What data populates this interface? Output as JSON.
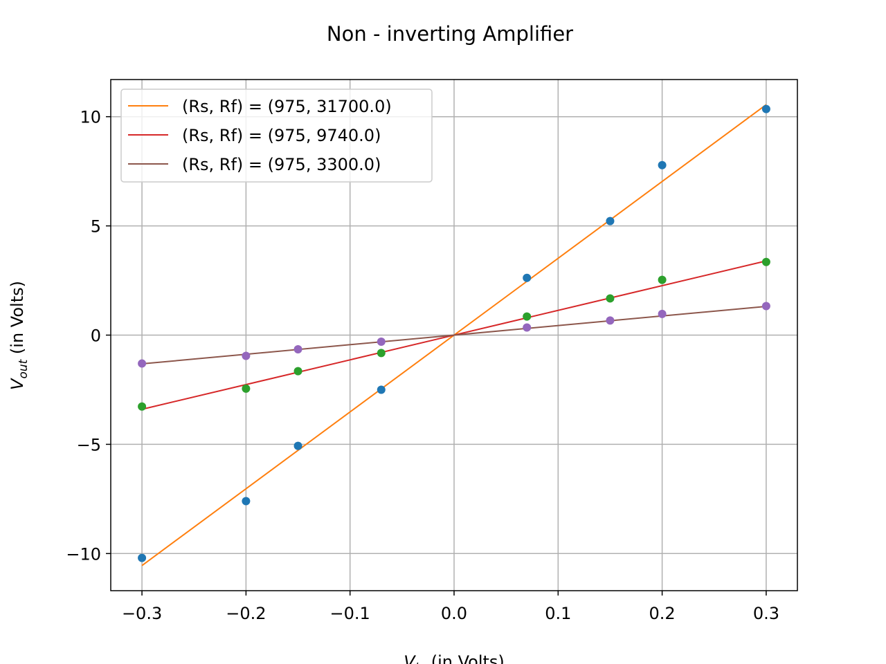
{
  "chart_data": {
    "type": "scatter",
    "title": "Non - inverting Amplifier",
    "xlabel": {
      "main": "V",
      "sub": "in",
      "rest": " (in Volts)"
    },
    "ylabel": {
      "main": "V",
      "sub": "out",
      "rest": " (in Volts)"
    },
    "xlim": [
      -0.33,
      0.33
    ],
    "ylim": [
      -11.7,
      11.7
    ],
    "xticks": [
      -0.3,
      -0.2,
      -0.1,
      0.0,
      0.1,
      0.2,
      0.3
    ],
    "xtick_labels": [
      "−0.3",
      "−0.2",
      "−0.1",
      "0.0",
      "0.1",
      "0.2",
      "0.3"
    ],
    "yticks": [
      -10,
      -5,
      0,
      5,
      10
    ],
    "ytick_labels": [
      "−10",
      "−5",
      "0",
      "5",
      "10"
    ],
    "grid": true,
    "legend_position": "top-left",
    "x": [
      -0.3,
      -0.2,
      -0.15,
      -0.07,
      0.07,
      0.15,
      0.2,
      0.3
    ],
    "measured": [
      {
        "color": "#1f77b4",
        "y": [
          -10.2,
          -7.6,
          -5.07,
          -2.5,
          2.62,
          5.22,
          7.78,
          10.35
        ]
      },
      {
        "color": "#2ca02c",
        "y": [
          -3.27,
          -2.45,
          -1.65,
          -0.82,
          0.85,
          1.68,
          2.53,
          3.35
        ]
      },
      {
        "color": "#9467bd",
        "y": [
          -1.3,
          -0.95,
          -0.65,
          -0.3,
          0.35,
          0.67,
          0.97,
          1.33
        ]
      }
    ],
    "series": [
      {
        "name": "(Rs, Rf) = (975, 31700.0)",
        "color": "#ff7f0e",
        "x": [
          -0.3,
          0.3
        ],
        "y": [
          -10.55,
          10.55
        ]
      },
      {
        "name": "(Rs, Rf) = (975, 9740.0)",
        "color": "#d62728",
        "x": [
          -0.3,
          0.3
        ],
        "y": [
          -3.3968,
          3.3968
        ]
      },
      {
        "name": "(Rs, Rf) = (975, 3300.0)",
        "color": "#8c564b",
        "x": [
          -0.3,
          0.3
        ],
        "y": [
          -1.3154,
          1.3154
        ]
      }
    ]
  }
}
